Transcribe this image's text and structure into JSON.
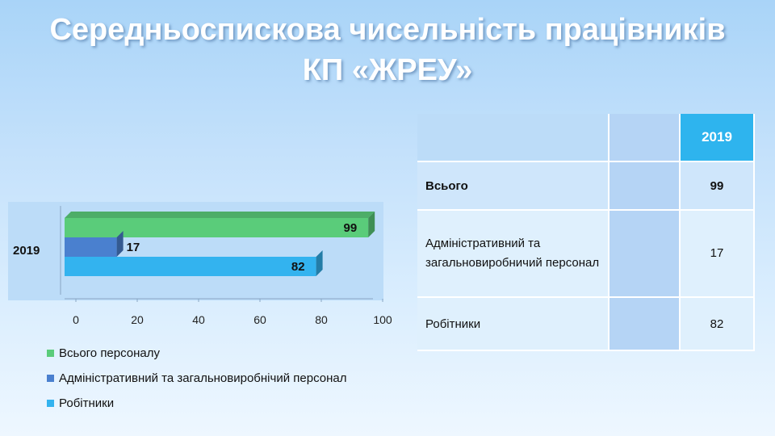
{
  "title_line1": "Середньоспискова чисельність працівників",
  "title_line2": "КП «ЖРЕУ»",
  "chart_data": {
    "type": "bar",
    "orientation": "horizontal",
    "categories": [
      "2019"
    ],
    "series": [
      {
        "name": "Всього персоналу",
        "values": [
          99
        ],
        "color": "#5acc7a"
      },
      {
        "name": "Адміністративний та загальновиробнічий персонал",
        "values": [
          17
        ],
        "color": "#4a80cf"
      },
      {
        "name": "Робітники",
        "values": [
          82
        ],
        "color": "#33b3ef"
      }
    ],
    "xlim": [
      0,
      100
    ],
    "xticks": [
      "0",
      "20",
      "40",
      "60",
      "80",
      "100"
    ],
    "legend_position": "bottom",
    "grid": false,
    "data_labels": true
  },
  "table": {
    "header": [
      "",
      "",
      "2019"
    ],
    "rows": [
      {
        "label": "Всього",
        "value": "99"
      },
      {
        "label": "Адміністративний та загальновиробничий персонал",
        "value": "17"
      },
      {
        "label": "Робітники",
        "value": "82"
      }
    ]
  }
}
